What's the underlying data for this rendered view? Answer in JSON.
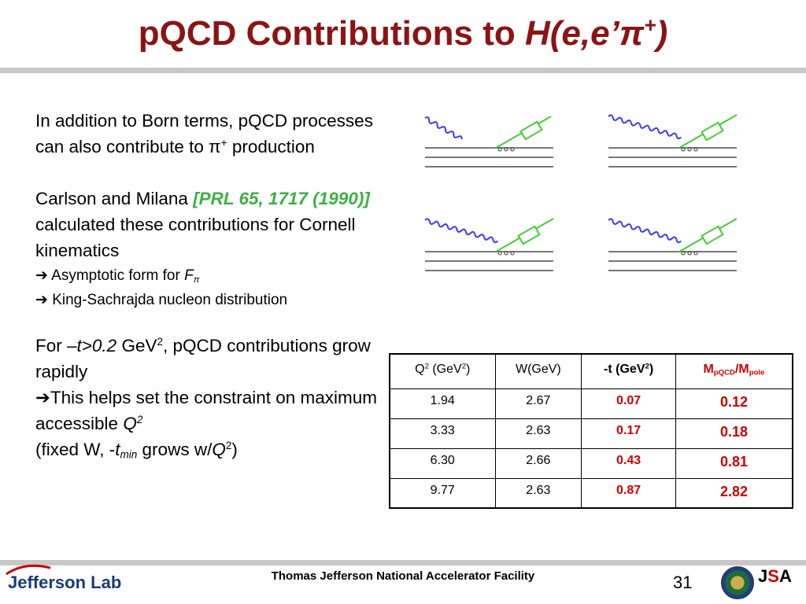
{
  "title": {
    "main": "pQCD Contributions to ",
    "italic": "H(e,e’π",
    "sup": "+",
    "close": ")"
  },
  "paragraph1": {
    "text": "In addition to Born terms, pQCD processes can also contribute to π",
    "sup": "+",
    "tail": " production"
  },
  "paragraph2": {
    "text_before": "Carlson and Milana ",
    "ref": "[PRL 65, 1717 (1990)]",
    "text_after": " calculated these contributions for Cornell kinematics",
    "bullet1_prefix": "➔ Asymptotic form for ",
    "bullet1_F": "F",
    "bullet1_sub": "π",
    "bullet2": "➔ King-Sachrajda nucleon distribution"
  },
  "paragraph3": {
    "line1_a": "For –",
    "line1_t": "t>0.2",
    "line1_b": " GeV",
    "line1_sup": "2",
    "line1_c": ", pQCD contributions grow rapidly",
    "line2": "➔This helps set the constraint on maximum accessible ",
    "line2_Q": "Q",
    "line2_sup": "2",
    "line3_a": "(fixed W, -",
    "line3_t": "t",
    "line3_sub": "min",
    "line3_b": " grows w/",
    "line3_Q": "Q",
    "line3_sup": "2",
    "line3_c": ")"
  },
  "table": {
    "headers": {
      "q2_a": "Q",
      "q2_sup": "2",
      "q2_b": " (GeV",
      "q2_sup2": "2",
      "q2_c": ")",
      "w": "W(GeV)",
      "t_a": "-t (GeV",
      "t_sup": "2",
      "t_b": ")",
      "m_a": "M",
      "m_sub1": "pQCD",
      "m_b": "/M",
      "m_sub2": "pole"
    },
    "rows": [
      [
        "1.94",
        "2.67",
        "0.07",
        "0.12"
      ],
      [
        "3.33",
        "2.63",
        "0.17",
        "0.18"
      ],
      [
        "6.30",
        "2.66",
        "0.43",
        "0.81"
      ],
      [
        "9.77",
        "2.63",
        "0.87",
        "2.82"
      ]
    ]
  },
  "footer": {
    "center": "Thomas Jefferson National Accelerator Facility",
    "page": "31",
    "lab": "Jefferson Lab",
    "jsa_j": "J",
    "jsa_s": "S",
    "jsa_a": "A"
  },
  "colors": {
    "title": "#8b1414",
    "accent_red": "#cc0000",
    "ref_green": "#3cb043",
    "photon": "#3a3af0",
    "pion": "#44cc33"
  }
}
